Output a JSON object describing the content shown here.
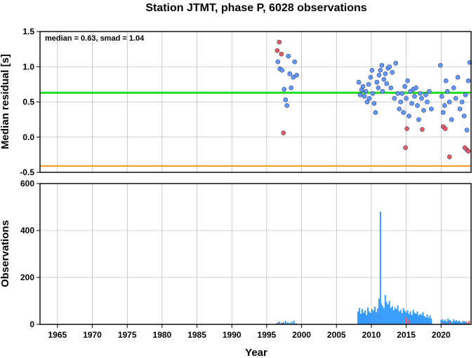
{
  "chart_data": [
    {
      "type": "scatter",
      "title": "Station JTMT, phase P, 6028 observations",
      "ylabel": "Median residual [s]",
      "annotation": "median = 0.63, smad = 1.04",
      "xlim": [
        1962.5,
        2024.3
      ],
      "ylim": [
        -0.5,
        1.5
      ],
      "yticks": [
        -0.5,
        0.0,
        0.5,
        1.0,
        1.5
      ],
      "ytick_labels": [
        "-0.5",
        "0.0",
        "0.5",
        "1.0",
        "1.5"
      ],
      "grid": true,
      "reference_lines": [
        {
          "name": "median",
          "y": 0.63,
          "color": "#22dd22"
        },
        {
          "name": "lower",
          "y": -0.41,
          "color": "#f0a020"
        }
      ],
      "colors": {
        "blue": "#6699ff",
        "red": "#f55a5a"
      },
      "series": [
        {
          "color": "blue",
          "x": [
            1996.6,
            1996.9,
            1997.2,
            1997.5,
            1997.7,
            1997.9,
            1998.1,
            1998.3,
            1998.5,
            1998.8,
            1999.0,
            1999.3,
            2008.2,
            2008.4,
            2008.6,
            2008.8,
            2009.0,
            2009.2,
            2009.4,
            2009.6,
            2009.7,
            2009.9,
            2010.1,
            2010.2,
            2010.4,
            2010.6,
            2010.8,
            2011.0,
            2011.1,
            2011.3,
            2011.5,
            2011.6,
            2011.8,
            2012.0,
            2012.2,
            2012.4,
            2012.6,
            2012.8,
            2013.0,
            2013.3,
            2013.5,
            2013.8,
            2014.0,
            2014.2,
            2014.4,
            2014.6,
            2014.8,
            2015.0,
            2015.2,
            2015.4,
            2015.6,
            2015.8,
            2016.0,
            2016.2,
            2016.4,
            2016.6,
            2016.8,
            2017.0,
            2017.2,
            2017.5,
            2017.8,
            2018.0,
            2018.3,
            2018.6,
            2019.9,
            2020.1,
            2020.3,
            2020.5,
            2020.7,
            2020.9,
            2021.2,
            2021.5,
            2021.8,
            2022.1,
            2022.4,
            2022.7,
            2023.0,
            2023.3,
            2023.5,
            2023.7,
            2023.9,
            2024.1
          ],
          "y": [
            1.07,
            0.97,
            0.95,
            0.68,
            0.53,
            0.45,
            1.15,
            0.9,
            0.7,
            0.85,
            1.07,
            0.88,
            0.78,
            0.6,
            0.67,
            0.72,
            0.58,
            0.65,
            0.5,
            0.75,
            0.55,
            0.85,
            0.95,
            0.62,
            0.48,
            0.35,
            0.78,
            0.7,
            0.88,
            0.95,
            1.02,
            0.65,
            0.82,
            0.9,
            0.76,
            0.98,
            1.0,
            0.7,
            0.92,
            0.55,
            1.05,
            0.62,
            0.4,
            0.5,
            0.62,
            0.35,
            0.72,
            0.55,
            0.8,
            0.3,
            0.65,
            0.48,
            0.68,
            0.58,
            0.7,
            0.45,
            0.25,
            0.62,
            0.55,
            0.38,
            0.6,
            0.5,
            0.65,
            0.4,
            1.02,
            0.58,
            0.35,
            0.45,
            0.8,
            0.65,
            0.5,
            0.25,
            0.7,
            0.55,
            0.85,
            0.4,
            0.5,
            0.3,
            0.6,
            0.1,
            0.8,
            1.06
          ]
        },
        {
          "color": "red",
          "x": [
            1996.5,
            1996.8,
            1997.1,
            1997.4,
            2014.9,
            2015.1,
            2017.3,
            2020.3,
            2020.6,
            2021.2,
            2023.4,
            2023.7,
            2023.9
          ],
          "y": [
            1.23,
            1.35,
            1.18,
            0.06,
            -0.15,
            0.12,
            0.11,
            0.15,
            0.12,
            -0.28,
            -0.15,
            -0.18,
            -0.2
          ]
        }
      ]
    },
    {
      "type": "bar",
      "xlabel": "Year",
      "ylabel": "Observations",
      "xlim": [
        1962.5,
        2024.3
      ],
      "ylim": [
        0,
        600
      ],
      "xticks": [
        1965,
        1970,
        1975,
        1980,
        1985,
        1990,
        1995,
        2000,
        2005,
        2010,
        2015,
        2020
      ],
      "xtick_labels": [
        "1965",
        "1970",
        "1975",
        "1980",
        "1985",
        "1990",
        "1995",
        "2000",
        "2005",
        "2010",
        "2015",
        "2020"
      ],
      "yticks": [
        0,
        200,
        400,
        600
      ],
      "ytick_labels": [
        "0",
        "200",
        "400",
        "600"
      ],
      "grid": true,
      "colors": {
        "blue": "#3399ff",
        "red": "#f55a5a"
      },
      "series": [
        {
          "color": "blue",
          "x": [
            1996.5,
            1996.8,
            1997.1,
            1997.4,
            1997.7,
            1998.0,
            1998.3,
            1998.6,
            1998.9,
            1999.2,
            2008.1,
            2008.3,
            2008.5,
            2008.7,
            2008.9,
            2009.1,
            2009.3,
            2009.5,
            2009.7,
            2009.9,
            2010.1,
            2010.3,
            2010.5,
            2010.7,
            2010.9,
            2011.1,
            2011.3,
            2011.4,
            2011.6,
            2011.8,
            2012.0,
            2012.2,
            2012.4,
            2012.6,
            2012.8,
            2013.0,
            2013.2,
            2013.4,
            2013.6,
            2013.8,
            2014.0,
            2014.2,
            2014.4,
            2014.6,
            2014.8,
            2015.0,
            2015.2,
            2015.4,
            2015.6,
            2015.8,
            2016.0,
            2016.2,
            2016.4,
            2016.6,
            2016.8,
            2017.0,
            2017.2,
            2017.4,
            2017.6,
            2017.8,
            2018.0,
            2018.2,
            2018.4,
            2018.6,
            2020.0,
            2020.2,
            2020.4,
            2020.6,
            2020.8,
            2021.0,
            2021.2,
            2021.4,
            2021.6,
            2021.8,
            2022.0,
            2022.2,
            2022.4,
            2022.6,
            2022.8,
            2023.0,
            2023.2,
            2023.4,
            2023.6,
            2023.8,
            2024.0
          ],
          "y": [
            8,
            12,
            6,
            10,
            14,
            9,
            7,
            11,
            16,
            5,
            55,
            70,
            45,
            65,
            50,
            60,
            40,
            72,
            55,
            48,
            65,
            58,
            75,
            52,
            68,
            110,
            480,
            90,
            80,
            70,
            125,
            95,
            85,
            100,
            70,
            78,
            60,
            72,
            65,
            80,
            55,
            62,
            48,
            70,
            58,
            50,
            60,
            45,
            55,
            40,
            62,
            50,
            45,
            55,
            38,
            45,
            40,
            52,
            35,
            30,
            42,
            28,
            38,
            25,
            18,
            22,
            15,
            20,
            12,
            25,
            18,
            16,
            10,
            22,
            14,
            18,
            12,
            16,
            10,
            8,
            15,
            12,
            9,
            6,
            10
          ]
        },
        {
          "color": "red",
          "x": [
            1996.6,
            1997.3,
            2015.0,
            2015.4,
            2020.3,
            2021.3,
            2023.6,
            2024.0
          ],
          "y": [
            6,
            8,
            30,
            20,
            8,
            10,
            12,
            15
          ]
        }
      ]
    }
  ]
}
